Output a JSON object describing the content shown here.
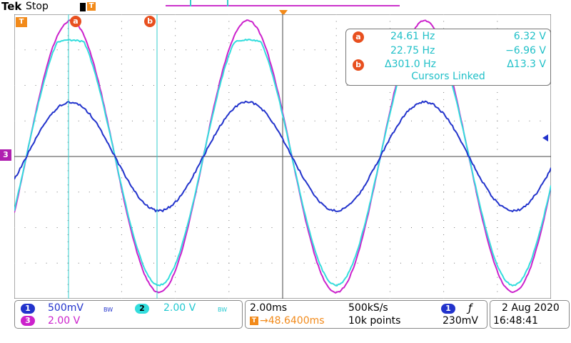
{
  "header": {
    "brand": "Tek",
    "status": "Stop",
    "trigger_label": "T"
  },
  "markers": {
    "trigger_marker": "T",
    "cursor_a": "a",
    "cursor_b": "b",
    "channel3_marker": "3"
  },
  "readout": {
    "rows": [
      {
        "badge": "a",
        "freq": "24.61 Hz",
        "volt": "6.32 V"
      },
      {
        "badge": "",
        "freq": "22.75 Hz",
        "volt": "−6.96 V"
      },
      {
        "badge": "b",
        "freq": "Δ301.0 Hz",
        "volt": "Δ13.3 V"
      }
    ],
    "linked_text": "Cursors Linked"
  },
  "channels": {
    "ch1": {
      "num": "1",
      "scale": "500mV",
      "bw": "BW",
      "color": "#2233cc"
    },
    "ch2": {
      "num": "2",
      "scale": "2.00 V",
      "bw": "BW",
      "color": "#33dddd"
    },
    "ch3": {
      "num": "3",
      "scale": "2.00 V",
      "color": "#cc22cc"
    }
  },
  "timebase": {
    "timediv": "2.00ms",
    "samplerate": "500kS/s",
    "trigger_pos": "→48.6400ms",
    "points": "10k points"
  },
  "trigger": {
    "source": "1",
    "slope_icon": "rising-edge-icon",
    "level": "230mV"
  },
  "datetime": {
    "date": "2 Aug 2020",
    "time": "16:48:41"
  },
  "colors": {
    "ch1": "#2233cc",
    "ch2": "#33dddd",
    "ch3": "#cc22cc",
    "trigger": "#f28a1a",
    "cursor_badge": "#e8501f"
  }
}
